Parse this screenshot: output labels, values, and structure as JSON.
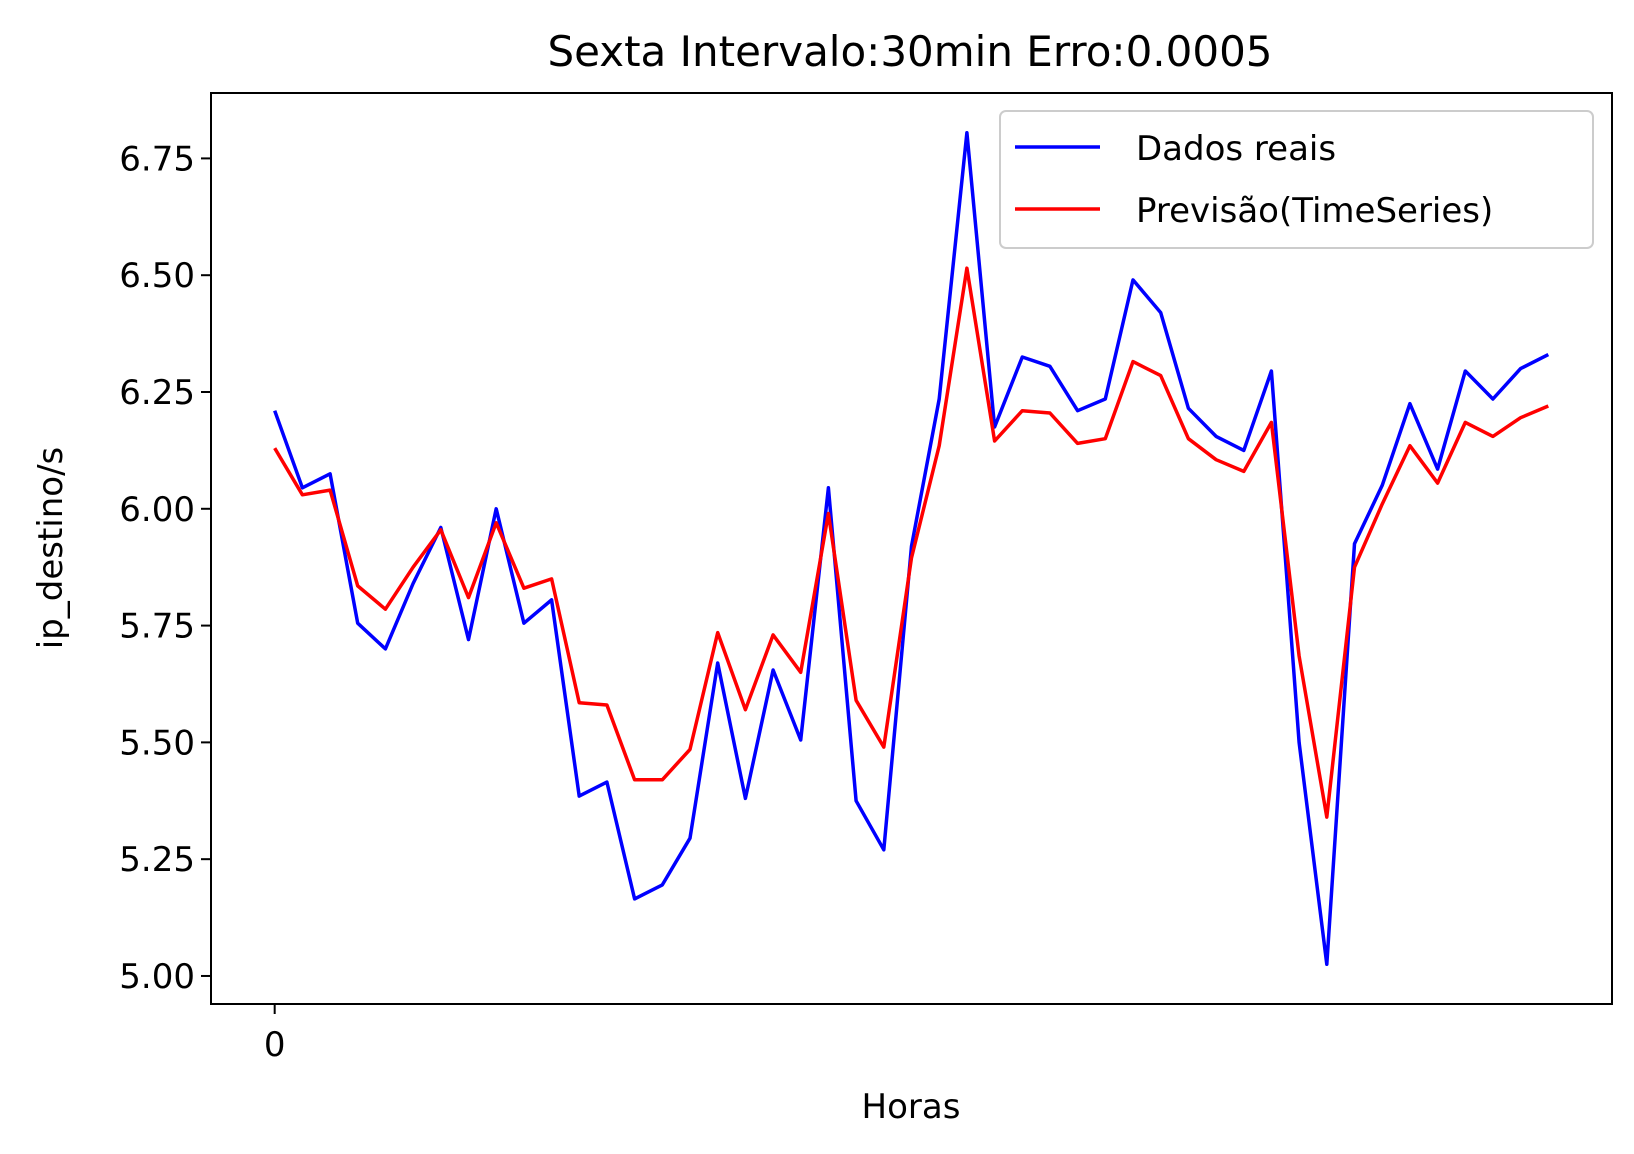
{
  "chart_data": {
    "type": "line",
    "title": "Sexta Intervalo:30min Erro:0.0005",
    "xlabel": "Horas",
    "ylabel": "ip_destino/s",
    "xticks": [
      0
    ],
    "xlim": [
      -2.3,
      48.3
    ],
    "ylim": [
      4.94,
      6.89
    ],
    "yticks": [
      5.0,
      5.25,
      5.5,
      5.75,
      6.0,
      6.25,
      6.5,
      6.75
    ],
    "ytick_labels": [
      "5.00",
      "5.25",
      "5.50",
      "5.75",
      "6.00",
      "6.25",
      "6.50",
      "6.75"
    ],
    "legend_position": "upper-right",
    "series": [
      {
        "name": "Dados reais",
        "color": "#0000ff",
        "values": [
          6.21,
          6.045,
          6.075,
          5.755,
          5.7,
          5.84,
          5.96,
          5.72,
          6.0,
          5.755,
          5.805,
          5.385,
          5.415,
          5.165,
          5.195,
          5.295,
          5.67,
          5.38,
          5.655,
          5.505,
          6.045,
          5.375,
          5.27,
          5.92,
          6.235,
          6.805,
          6.175,
          6.325,
          6.305,
          6.21,
          6.235,
          6.49,
          6.42,
          6.215,
          6.155,
          6.125,
          6.295,
          5.5,
          5.025,
          5.925,
          6.05,
          6.225,
          6.085,
          6.295,
          6.235,
          6.3,
          6.33
        ]
      },
      {
        "name": "Previsão(TimeSeries)",
        "color": "#ff0000",
        "values": [
          6.13,
          6.03,
          6.04,
          5.835,
          5.785,
          5.875,
          5.955,
          5.81,
          5.97,
          5.83,
          5.85,
          5.585,
          5.58,
          5.42,
          5.42,
          5.485,
          5.735,
          5.57,
          5.73,
          5.65,
          5.99,
          5.59,
          5.49,
          5.895,
          6.135,
          6.515,
          6.145,
          6.21,
          6.205,
          6.14,
          6.15,
          6.315,
          6.285,
          6.15,
          6.105,
          6.08,
          6.185,
          5.685,
          5.34,
          5.875,
          6.01,
          6.135,
          6.055,
          6.185,
          6.155,
          6.195,
          6.22
        ]
      }
    ]
  }
}
